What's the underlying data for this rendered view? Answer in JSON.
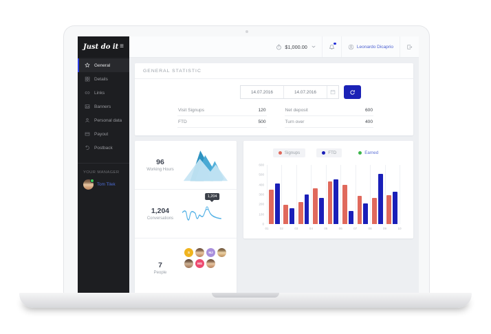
{
  "sidebar": {
    "logo": "Just do it",
    "items": [
      {
        "label": "General",
        "icon": "star",
        "active": true
      },
      {
        "label": "Details",
        "icon": "grid",
        "active": false
      },
      {
        "label": "Links",
        "icon": "link",
        "active": false
      },
      {
        "label": "Banners",
        "icon": "image",
        "active": false
      },
      {
        "label": "Personal data",
        "icon": "user",
        "active": false
      },
      {
        "label": "Payout",
        "icon": "card",
        "active": false
      },
      {
        "label": "Postback",
        "icon": "undo",
        "active": false
      }
    ],
    "manager_label": "YOUR MANAGER",
    "manager_name": "Tom Tilek"
  },
  "topbar": {
    "balance": "$1,000.00",
    "user_name": "Leonardo Dicaprio"
  },
  "general": {
    "title": "GENERAL STATISTIC",
    "date_from": "14.07.2016",
    "date_to": "14.07.2016",
    "stats": [
      {
        "label": "Visit Signups",
        "value": "120"
      },
      {
        "label": "Net deposit",
        "value": "600"
      },
      {
        "label": "FTD",
        "value": "500"
      },
      {
        "label": "Turn over",
        "value": "400"
      }
    ]
  },
  "summary": {
    "working_hours": {
      "value": "96",
      "label": "Working Hours"
    },
    "conversations": {
      "value": "1,204",
      "label": "Conversations",
      "tooltip": "1,204"
    },
    "people": {
      "value": "7",
      "label": "People",
      "avatars": [
        {
          "type": "initials",
          "text": "S",
          "color": "#f0b41e"
        },
        {
          "type": "photo"
        },
        {
          "type": "initials",
          "text": "MJ",
          "color": "#a98fdc"
        },
        {
          "type": "photo"
        },
        {
          "type": "photo"
        },
        {
          "type": "initials",
          "text": "MS",
          "color": "#ed4b70"
        },
        {
          "type": "photo"
        }
      ]
    }
  },
  "chart_data": {
    "type": "bar",
    "categories": [
      "01",
      "02",
      "03",
      "04",
      "05",
      "06",
      "07",
      "08",
      "09",
      "10"
    ],
    "bars_between_ticks": true,
    "series": [
      {
        "name": "Signups",
        "color": "#e0695c",
        "pill": true,
        "values": [
          350,
          195,
          225,
          360,
          430,
          395,
          285,
          265,
          295
        ]
      },
      {
        "name": "FTD",
        "color": "#1a1fb8",
        "pill": true,
        "values": [
          410,
          160,
          300,
          265,
          455,
          130,
          210,
          510,
          325
        ]
      },
      {
        "name": "Earned",
        "color": "#3cb54a",
        "pill": false,
        "values": []
      }
    ],
    "ylim": [
      0,
      600
    ],
    "yticks": [
      0,
      100,
      200,
      300,
      400,
      500,
      600
    ],
    "legend_position": "top",
    "grid": "vertical"
  },
  "colors": {
    "accent_blue": "#1b22b6",
    "sidebar_bg": "#1d1e21",
    "link_blue": "#4a5fd0",
    "line_chart": "#55b2e6"
  }
}
